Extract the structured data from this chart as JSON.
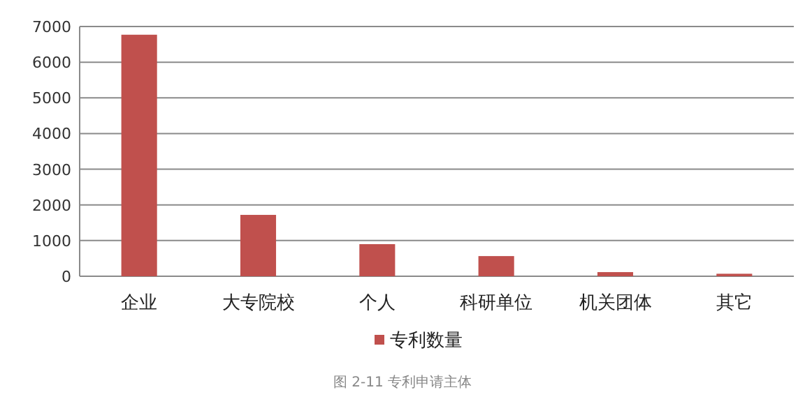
{
  "chart_data": {
    "type": "bar",
    "categories": [
      "企业",
      "大专院校",
      "个人",
      "科研单位",
      "机关团体",
      "其它"
    ],
    "series": [
      {
        "name": "专利数量",
        "color": "#c0504d",
        "values": [
          6770,
          1720,
          900,
          565,
          116,
          70
        ]
      }
    ],
    "ylim": [
      0,
      7000
    ],
    "yticks": [
      0,
      1000,
      2000,
      3000,
      4000,
      5000,
      6000,
      7000
    ],
    "grid": "y",
    "legend": "bottom",
    "annotations": [
      "图 2-11 专利申请主体"
    ]
  }
}
